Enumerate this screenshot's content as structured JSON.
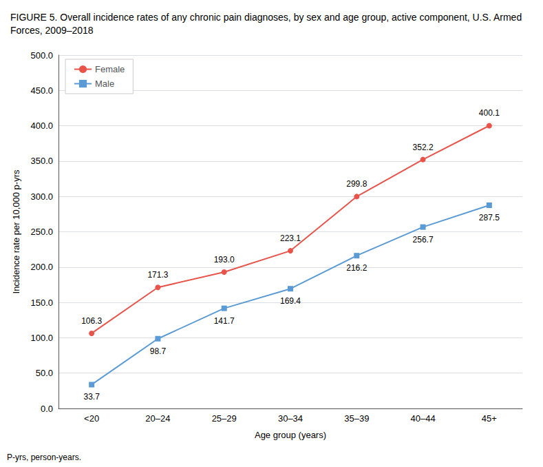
{
  "chart_data": {
    "type": "line",
    "title": "FIGURE 5. Overall incidence rates of any chronic pain diagnoses, by sex and age group, active component, U.S. Armed Forces, 2009–2018",
    "categories": [
      "<20",
      "20–24",
      "25–29",
      "30–34",
      "35–39",
      "40–44",
      "45+"
    ],
    "series": [
      {
        "name": "Female",
        "color": "#E8534A",
        "marker": "circle",
        "values": [
          106.3,
          171.3,
          193.0,
          223.1,
          299.8,
          352.2,
          400.1
        ],
        "value_labels": [
          "106.3",
          "171.3",
          "193.0",
          "223.1",
          "299.8",
          "352.2",
          "400.1"
        ]
      },
      {
        "name": "Male",
        "color": "#5B9BD5",
        "marker": "square",
        "values": [
          33.7,
          98.7,
          141.7,
          169.4,
          216.2,
          256.7,
          287.5
        ]
      }
    ],
    "xlabel": "Age group (years)",
    "ylabel": "Incidence rate per 10,000 p-yrs",
    "ylim": [
      0,
      500
    ],
    "yticks": [
      {
        "value": 0,
        "label": "0.0"
      },
      {
        "value": 50,
        "label": "50.0"
      },
      {
        "value": 100,
        "label": "100.0"
      },
      {
        "value": 150,
        "label": "150.0"
      },
      {
        "value": 200,
        "label": "200.0"
      },
      {
        "value": 250,
        "label": "250.0"
      },
      {
        "value": 300,
        "label": "300.0"
      },
      {
        "value": 350,
        "label": "350.0"
      },
      {
        "value": 400,
        "label": "400.0"
      },
      {
        "value": 450,
        "label": "450.0"
      },
      {
        "value": 500,
        "label": "500.0"
      }
    ],
    "grid": true,
    "legend": "upper left",
    "data_labels": true,
    "annotations": [
      "P-yrs, person-years."
    ]
  }
}
